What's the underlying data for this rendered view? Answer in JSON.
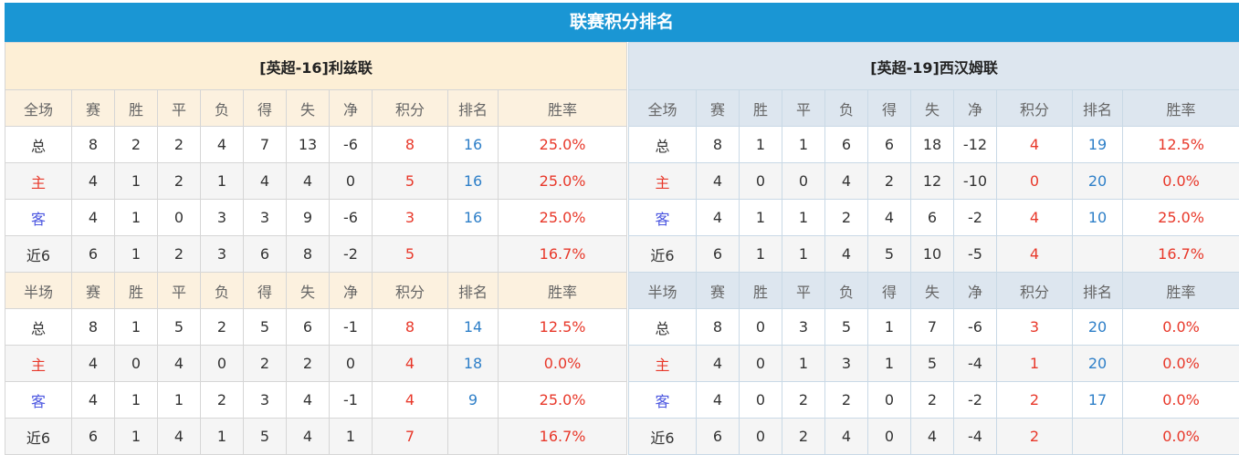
{
  "title": "联赛积分排名",
  "columns": [
    "赛",
    "胜",
    "平",
    "负",
    "得",
    "失",
    "净",
    "积分",
    "排名",
    "胜率"
  ],
  "colors": {
    "header": "#1a96d4",
    "points": "#e8382a",
    "rank": "#2e7fc8",
    "home": "#e8382a",
    "away": "#4a55e0"
  },
  "teams": [
    {
      "name": "[英超-16]利兹联",
      "sections": [
        {
          "label": "全场",
          "rows": [
            [
              "总",
              "8",
              "2",
              "2",
              "4",
              "7",
              "13",
              "-6",
              "8",
              "16",
              "25.0%"
            ],
            [
              "主",
              "4",
              "1",
              "2",
              "1",
              "4",
              "4",
              "0",
              "5",
              "16",
              "25.0%"
            ],
            [
              "客",
              "4",
              "1",
              "0",
              "3",
              "3",
              "9",
              "-6",
              "3",
              "16",
              "25.0%"
            ],
            [
              "近6",
              "6",
              "1",
              "2",
              "3",
              "6",
              "8",
              "-2",
              "5",
              "",
              "16.7%"
            ]
          ]
        },
        {
          "label": "半场",
          "rows": [
            [
              "总",
              "8",
              "1",
              "5",
              "2",
              "5",
              "6",
              "-1",
              "8",
              "14",
              "12.5%"
            ],
            [
              "主",
              "4",
              "0",
              "4",
              "0",
              "2",
              "2",
              "0",
              "4",
              "18",
              "0.0%"
            ],
            [
              "客",
              "4",
              "1",
              "1",
              "2",
              "3",
              "4",
              "-1",
              "4",
              "9",
              "25.0%"
            ],
            [
              "近6",
              "6",
              "1",
              "4",
              "1",
              "5",
              "4",
              "1",
              "7",
              "",
              "16.7%"
            ]
          ]
        }
      ]
    },
    {
      "name": "[英超-19]西汉姆联",
      "sections": [
        {
          "label": "全场",
          "rows": [
            [
              "总",
              "8",
              "1",
              "1",
              "6",
              "6",
              "18",
              "-12",
              "4",
              "19",
              "12.5%"
            ],
            [
              "主",
              "4",
              "0",
              "0",
              "4",
              "2",
              "12",
              "-10",
              "0",
              "20",
              "0.0%"
            ],
            [
              "客",
              "4",
              "1",
              "1",
              "2",
              "4",
              "6",
              "-2",
              "4",
              "10",
              "25.0%"
            ],
            [
              "近6",
              "6",
              "1",
              "1",
              "4",
              "5",
              "10",
              "-5",
              "4",
              "",
              "16.7%"
            ]
          ]
        },
        {
          "label": "半场",
          "rows": [
            [
              "总",
              "8",
              "0",
              "3",
              "5",
              "1",
              "7",
              "-6",
              "3",
              "20",
              "0.0%"
            ],
            [
              "主",
              "4",
              "0",
              "1",
              "3",
              "1",
              "5",
              "-4",
              "1",
              "20",
              "0.0%"
            ],
            [
              "客",
              "4",
              "0",
              "2",
              "2",
              "0",
              "2",
              "-2",
              "2",
              "17",
              "0.0%"
            ],
            [
              "近6",
              "6",
              "0",
              "2",
              "4",
              "0",
              "4",
              "-4",
              "2",
              "",
              "0.0%"
            ]
          ]
        }
      ]
    }
  ]
}
